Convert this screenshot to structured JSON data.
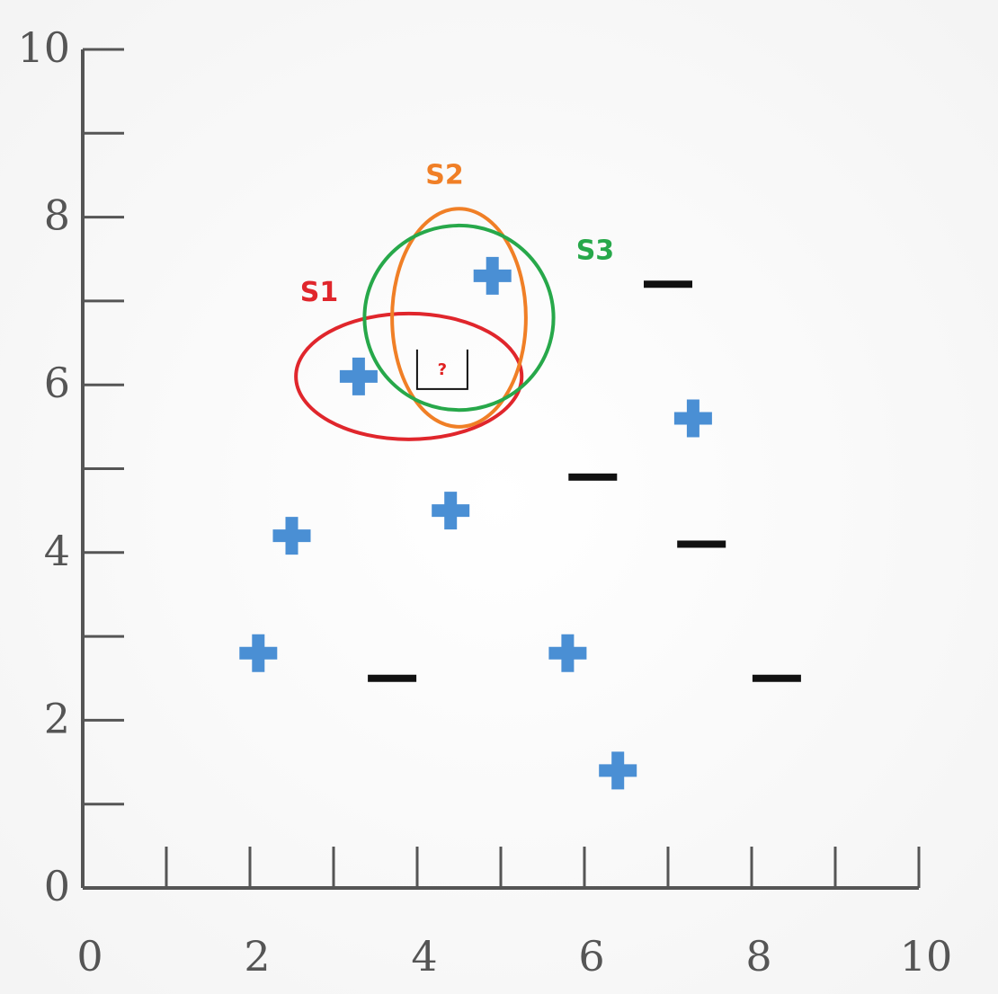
{
  "chart_data": {
    "type": "scatter",
    "title": "",
    "xlabel": "",
    "ylabel": "",
    "xlim": [
      0,
      10
    ],
    "ylim": [
      0,
      10
    ],
    "x_ticks": [
      "0",
      "2",
      "4",
      "6",
      "8",
      "10"
    ],
    "y_ticks": [
      "0",
      "2",
      "4",
      "6",
      "8",
      "10"
    ],
    "grid": false,
    "series": [
      {
        "marker": "plus",
        "color": "#4a8fd4",
        "points": [
          [
            3.3,
            6.1
          ],
          [
            4.9,
            7.3
          ],
          [
            7.3,
            5.6
          ],
          [
            4.4,
            4.5
          ],
          [
            2.5,
            4.2
          ],
          [
            2.1,
            2.8
          ],
          [
            5.8,
            2.8
          ],
          [
            6.4,
            1.4
          ]
        ]
      },
      {
        "marker": "minus",
        "color": "#111111",
        "points": [
          [
            7.0,
            7.2
          ],
          [
            6.1,
            4.9
          ],
          [
            7.4,
            4.1
          ],
          [
            3.7,
            2.5
          ],
          [
            8.3,
            2.5
          ]
        ]
      }
    ],
    "query_point": {
      "label": "?",
      "x": 4.3,
      "y": 6.1
    },
    "sets": [
      {
        "label": "S1",
        "color": "#e0262c",
        "cx": 3.9,
        "cy": 6.1,
        "rx": 1.35,
        "ry": 0.75
      },
      {
        "label": "S2",
        "color": "#f07f26",
        "cx": 4.5,
        "cy": 6.8,
        "rx": 0.8,
        "ry": 1.3
      },
      {
        "label": "S3",
        "color": "#27a84a",
        "cx": 4.5,
        "cy": 6.8,
        "rx": 1.13,
        "ry": 1.1
      }
    ],
    "set_label_positions": [
      {
        "label": "S1",
        "x": 2.6,
        "y": 7.0
      },
      {
        "label": "S2",
        "x": 4.1,
        "y": 8.4
      },
      {
        "label": "S3",
        "x": 5.9,
        "y": 7.5
      }
    ]
  }
}
